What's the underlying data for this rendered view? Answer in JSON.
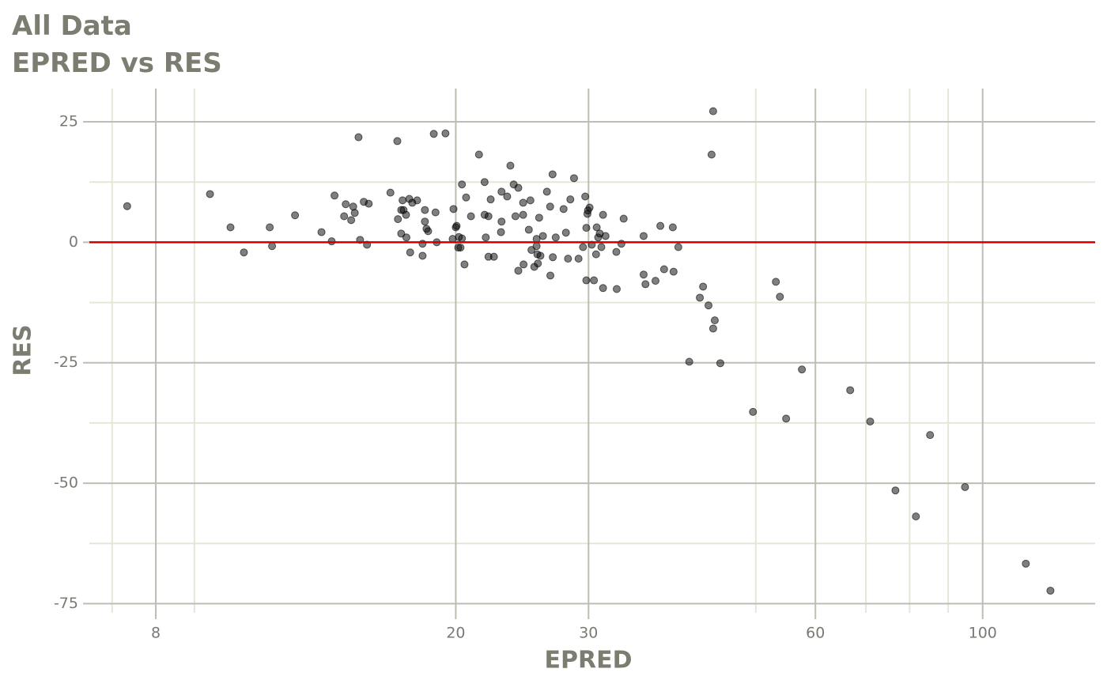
{
  "chart_data": {
    "type": "scatter",
    "title": "All Data",
    "subtitle": "EPRED vs RES",
    "x_label": "EPRED",
    "y_label": "RES",
    "log_x": true,
    "grid": true,
    "color": "#000000",
    "hline": 0,
    "hline_color": "#cc0000",
    "xlim": [
      6.53,
      141
    ],
    "xticks": [
      8,
      20,
      30,
      60,
      100
    ],
    "xminor": [
      7,
      9,
      50,
      70,
      80,
      90
    ],
    "ylim": [
      -76.9,
      31.9
    ],
    "yticks": [
      -75,
      -50,
      -25,
      0,
      25
    ],
    "yminor": [
      -62.5,
      -37.5,
      -12.5,
      12.5
    ],
    "x": [
      7.33,
      9.44,
      10.05,
      10.47,
      11.33,
      11.41,
      12.24,
      13.27,
      13.69,
      13.81,
      14.22,
      14.29,
      14.53,
      14.62,
      14.69,
      14.86,
      14.93,
      15.1,
      15.25,
      15.33,
      16.38,
      16.73,
      16.76,
      16.93,
      16.93,
      17.0,
      17.05,
      17.18,
      17.2,
      17.35,
      17.4,
      17.51,
      17.77,
      18.07,
      18.07,
      18.2,
      18.2,
      18.29,
      18.38,
      18.7,
      18.8,
      18.87,
      19.38,
      19.81,
      19.86,
      20.0,
      20.05,
      20.15,
      20.19,
      20.29,
      20.38,
      20.38,
      20.54,
      20.64,
      20.95,
      21.47,
      21.84,
      21.84,
      21.92,
      22.1,
      22.1,
      22.25,
      22.47,
      22.96,
      23.0,
      23.0,
      23.4,
      23.63,
      23.87,
      24.0,
      24.21,
      24.21,
      24.57,
      24.57,
      24.6,
      25.0,
      25.12,
      25.2,
      25.42,
      25.6,
      25.6,
      25.66,
      25.7,
      25.8,
      25.9,
      26.1,
      26.42,
      26.68,
      26.7,
      26.88,
      26.9,
      27.14,
      27.8,
      28.0,
      28.18,
      28.38,
      28.7,
      29.1,
      29.5,
      29.7,
      29.8,
      29.8,
      29.9,
      29.95,
      30.1,
      30.3,
      30.5,
      30.7,
      30.76,
      30.9,
      31.05,
      31.2,
      31.36,
      31.36,
      31.6,
      32.66,
      32.7,
      33.17,
      33.4,
      35.5,
      35.5,
      35.7,
      36.81,
      37.36,
      37.79,
      38.81,
      38.9,
      39.47,
      40.81,
      42.15,
      42.57,
      43.28,
      43.69,
      43.9,
      43.9,
      44.12,
      44.87,
      49.58,
      53.17,
      53.83,
      54.86,
      57.57,
      66.72,
      70.92,
      76.61,
      81.55,
      85.16,
      94.76,
      114.1,
      123.0
    ],
    "values": [
      7.5,
      10.0,
      3.1,
      -2.1,
      3.1,
      -0.8,
      5.6,
      2.1,
      0.2,
      9.7,
      5.4,
      7.9,
      4.6,
      7.4,
      6.1,
      21.8,
      0.5,
      8.4,
      -0.5,
      8.0,
      10.3,
      21.0,
      4.8,
      6.7,
      1.8,
      8.7,
      6.7,
      5.7,
      1.0,
      9.0,
      -2.1,
      8.2,
      8.7,
      -2.8,
      -0.3,
      6.7,
      4.3,
      2.8,
      2.3,
      22.5,
      6.2,
      0.0,
      22.6,
      0.7,
      6.9,
      3.1,
      3.4,
      -1.1,
      1.1,
      -1.1,
      0.8,
      12.0,
      -4.6,
      9.3,
      5.4,
      18.2,
      12.5,
      5.7,
      1.0,
      5.4,
      -3.0,
      8.9,
      -3.0,
      2.1,
      4.3,
      10.5,
      9.5,
      15.9,
      12.0,
      5.4,
      11.3,
      -5.9,
      8.2,
      5.7,
      -4.6,
      2.6,
      8.7,
      -1.6,
      -5.1,
      0.7,
      -0.8,
      -2.5,
      -4.4,
      5.1,
      -2.8,
      1.3,
      10.5,
      7.4,
      -6.9,
      14.1,
      -3.1,
      1.0,
      6.9,
      2.0,
      -3.4,
      8.9,
      13.3,
      -3.4,
      -1.0,
      9.5,
      -7.9,
      3.0,
      5.9,
      6.6,
      7.2,
      -0.5,
      -7.9,
      -2.5,
      3.1,
      1.0,
      1.8,
      -1.0,
      5.7,
      -9.5,
      1.3,
      -2.0,
      -9.7,
      -0.3,
      4.9,
      1.3,
      -6.7,
      -8.7,
      -8.0,
      3.4,
      -5.6,
      3.1,
      -6.1,
      -1.0,
      -24.8,
      -11.5,
      -9.2,
      -13.1,
      18.2,
      27.2,
      -17.9,
      -16.2,
      -25.1,
      -35.2,
      -8.2,
      -11.3,
      -36.6,
      -26.4,
      -30.7,
      -37.2,
      -51.5,
      -56.9,
      -40.0,
      -50.8,
      -66.7,
      -72.3
    ]
  }
}
